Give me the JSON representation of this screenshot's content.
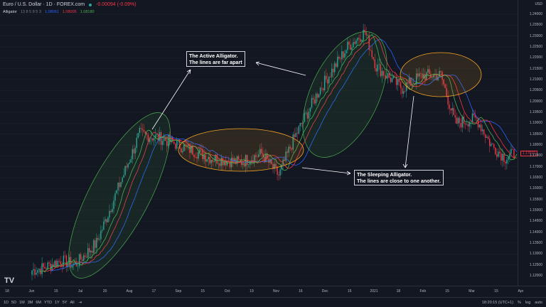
{
  "header": {
    "symbol": "Euro / U.S. Dollar · 1D · FOREX.com",
    "change": "-0.00094 (-0.09%)",
    "indicator": "Alligator",
    "params": "13 8 5 8 5 3",
    "jaw": "1.08061",
    "teeth": "1.08005",
    "lips": "1.08180"
  },
  "colors": {
    "up": "#26a69a",
    "down": "#f23645",
    "jaw": "#2962ff",
    "teeth": "#f23645",
    "lips": "#4caf50",
    "active_ellipse": "#4caf50",
    "sleeping_ellipse": "#f5a623"
  },
  "price_axis": {
    "currency": "USD",
    "ticks": [
      "1.24000",
      "1.23500",
      "1.23000",
      "1.22500",
      "1.22000",
      "1.21500",
      "1.21000",
      "1.20500",
      "1.20000",
      "1.19500",
      "1.19000",
      "1.18500",
      "1.18000",
      "1.17500",
      "1.17000",
      "1.16500",
      "1.16000",
      "1.15500",
      "1.15000",
      "1.14500",
      "1.14000",
      "1.13500",
      "1.13000",
      "1.12500",
      "1.12000"
    ],
    "current": "1.17610"
  },
  "time_axis": [
    "18",
    "Jun",
    "15",
    "Jul",
    "20",
    "Aug",
    "17",
    "Sep",
    "15",
    "Oct",
    "19",
    "Nov",
    "16",
    "Dec",
    "15",
    "2021",
    "18",
    "Feb",
    "15",
    "Mar",
    "15",
    "Apr"
  ],
  "price_path": [
    [
      0,
      1.1225
    ],
    [
      8,
      1.1235
    ],
    [
      20,
      1.127
    ],
    [
      30,
      1.125
    ],
    [
      45,
      1.135
    ],
    [
      60,
      1.16
    ],
    [
      75,
      1.185
    ],
    [
      90,
      1.183
    ],
    [
      110,
      1.178
    ],
    [
      125,
      1.174
    ],
    [
      145,
      1.172
    ],
    [
      160,
      1.176
    ],
    [
      172,
      1.166
    ],
    [
      182,
      1.182
    ],
    [
      200,
      1.205
    ],
    [
      220,
      1.225
    ],
    [
      232,
      1.232
    ],
    [
      240,
      1.216
    ],
    [
      258,
      1.206
    ],
    [
      272,
      1.212
    ],
    [
      285,
      1.212
    ],
    [
      295,
      1.19
    ],
    [
      310,
      1.192
    ],
    [
      320,
      1.18
    ],
    [
      330,
      1.174
    ],
    [
      336,
      1.176
    ]
  ],
  "annotations": {
    "active": [
      "The Active Alligator.",
      "The lines are far apart"
    ],
    "sleeping": [
      "The Sleeping Alligator.",
      "The lines are close to one another."
    ]
  },
  "bottom_bar": {
    "ranges": [
      "1D",
      "5D",
      "1M",
      "3M",
      "6M",
      "YTD",
      "1Y",
      "5Y",
      "All"
    ],
    "time": "18:20:15 (UTC+1)",
    "percent": "%",
    "log": "log",
    "auto": "auto"
  }
}
